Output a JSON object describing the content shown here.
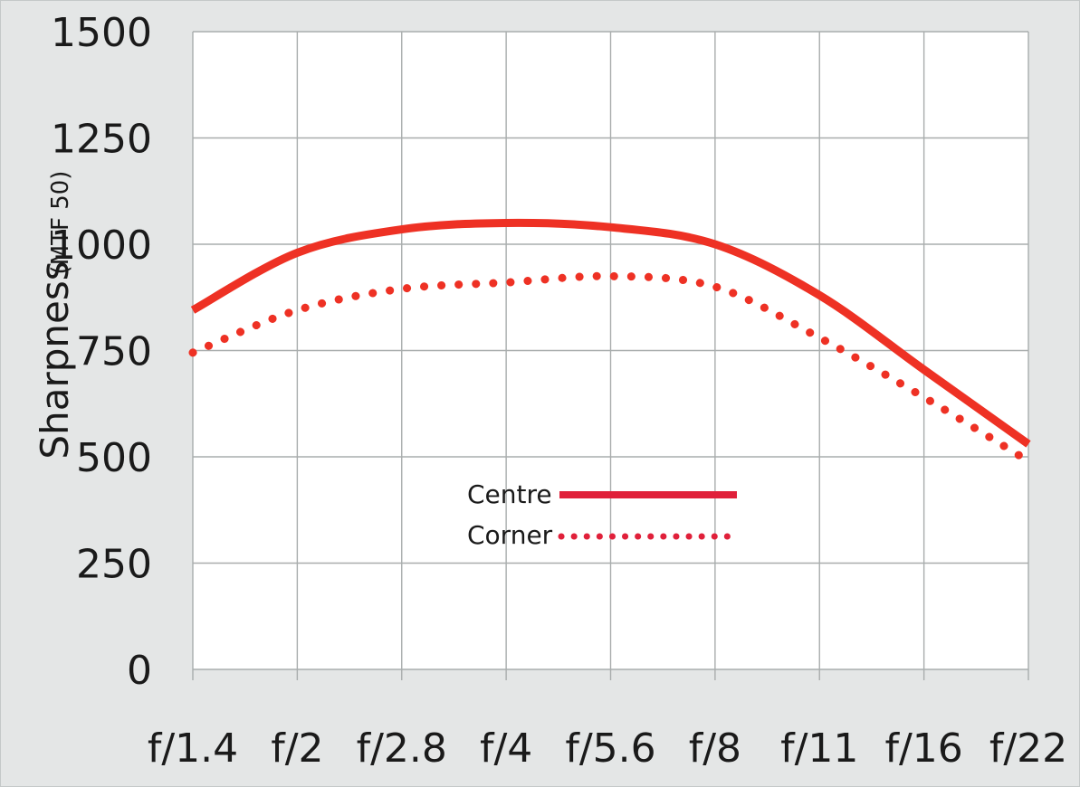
{
  "chart_data": {
    "type": "line",
    "title": "",
    "ylabel": "Sharpness",
    "ylabel_unit": "(MTF 50)",
    "xlabel": "",
    "ylim": [
      0,
      1500
    ],
    "yticks": [
      "0",
      "250",
      "500",
      "750",
      "1000",
      "1250",
      "1500"
    ],
    "ytick_values": [
      0,
      250,
      500,
      750,
      1000,
      1250,
      1500
    ],
    "categories": [
      "f/1.4",
      "f/2",
      "f/2.8",
      "f/4",
      "f/5.6",
      "f/8",
      "f/11",
      "f/16",
      "f/22"
    ],
    "grid": true,
    "legend_position": "center",
    "series": [
      {
        "name": "Centre",
        "style": "solid",
        "color": "#ee3124",
        "legend_color": "#e0203a",
        "values": [
          845,
          980,
          1035,
          1050,
          1040,
          1000,
          880,
          705,
          530
        ]
      },
      {
        "name": "Corner",
        "style": "dotted",
        "color": "#ee3124",
        "legend_color": "#e0203a",
        "values": [
          745,
          845,
          895,
          910,
          925,
          900,
          780,
          640,
          490
        ]
      }
    ]
  }
}
